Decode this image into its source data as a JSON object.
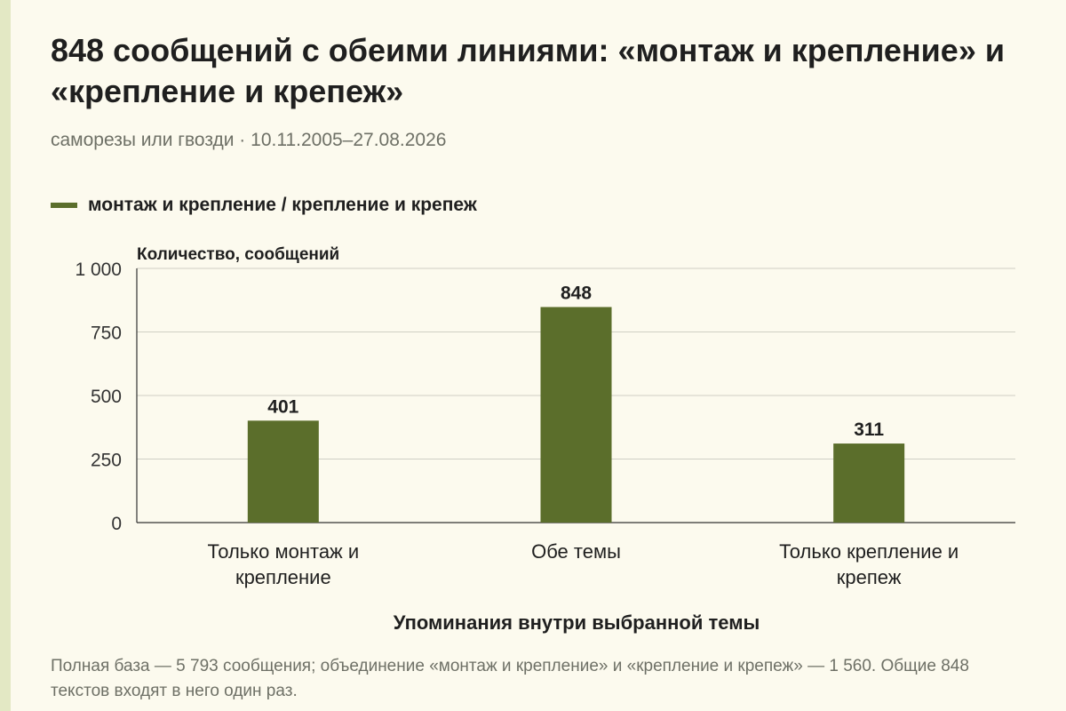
{
  "title": "848 сообщений с обеими линиями: «монтаж и крепление» и «крепление и крепеж»",
  "subtitle": "саморезы или гвозди · 10.11.2005–27.08.2026",
  "legend": {
    "label": "монтаж и крепление / крепление и крепеж",
    "color": "#5b6e2b"
  },
  "footnote": "Полная база — 5 793 сообщения; объединение «монтаж и крепление» и «крепление и крепеж» — 1 560. Общие 848 текстов входят в него один раз.",
  "chart_data": {
    "type": "bar",
    "categories": [
      [
        "Только монтаж и",
        "крепление"
      ],
      [
        "Обе темы"
      ],
      [
        "Только крепление и",
        "крепеж"
      ]
    ],
    "values": [
      401,
      848,
      311
    ],
    "data_labels": [
      "401",
      "848",
      "311"
    ],
    "ylabel": "Количество, сообщений",
    "xlabel": "Упоминания внутри выбранной темы",
    "ylim": [
      0,
      1000
    ],
    "yticks": [
      0,
      250,
      500,
      750,
      1000
    ],
    "ytick_labels": [
      "0",
      "250",
      "500",
      "750",
      "1 000"
    ],
    "grid": true,
    "bar_color": "#5b6e2b",
    "legend_position": "top-left"
  }
}
